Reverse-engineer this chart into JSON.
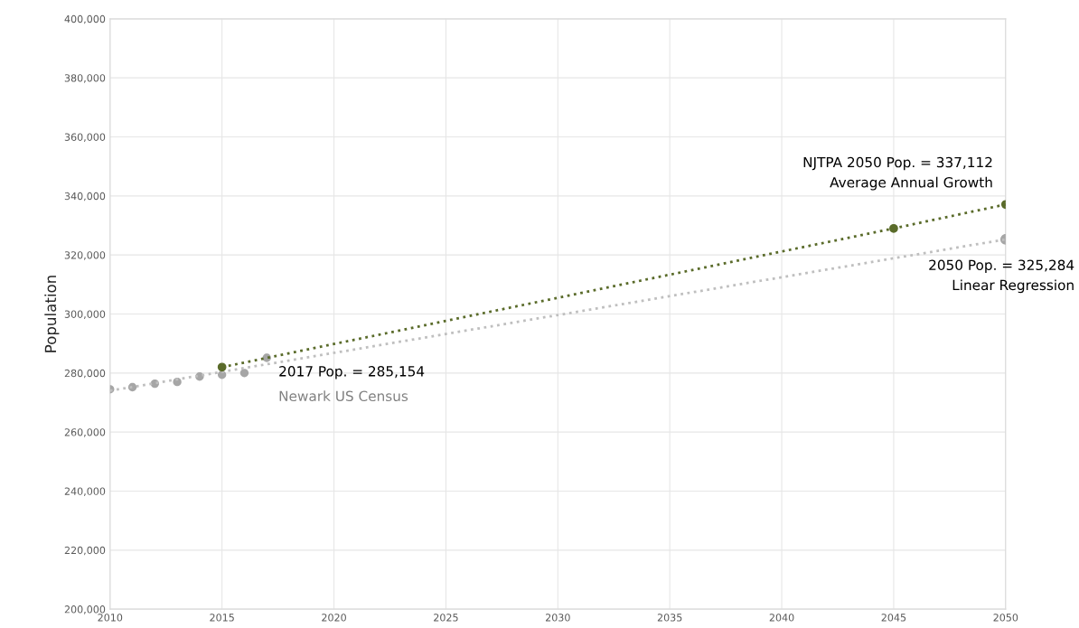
{
  "chart_data": {
    "type": "scatter",
    "ylabel": "Population",
    "x": [
      2010,
      2011,
      2012,
      2013,
      2014,
      2015,
      2016,
      2017
    ],
    "series": [
      {
        "color": "#a6a6a6",
        "values": [
          274500,
          275200,
          276400,
          277000,
          278800,
          279400,
          280000,
          285154
        ]
      },
      {
        "type": "line",
        "line_style": "dotted",
        "marker": "none",
        "color": "#bfbfbf",
        "x": [
          2010,
          2050
        ],
        "values": [
          274000,
          325284
        ]
      },
      {
        "color": "#a6a6a6",
        "x": [
          2050
        ],
        "values": [
          325284
        ]
      },
      {
        "type": "line",
        "line_style": "dotted",
        "marker": "circle",
        "color": "#5a6b2a",
        "x": [
          2015,
          2045,
          2050
        ],
        "values": [
          282000,
          329000,
          337112
        ]
      }
    ],
    "annotations": [
      "2017 Pop. = 285,154",
      "Newark US Census",
      "NJTPA 2050 Pop. = 337,112",
      "Average Annual Growth",
      "2050 Pop. = 325,284",
      "Linear Regression"
    ],
    "xlim": [
      2010,
      2050
    ],
    "xticks": [
      2010,
      2015,
      2020,
      2025,
      2030,
      2035,
      2040,
      2045,
      2050
    ],
    "ylim": [
      200000,
      400000
    ],
    "yticks": [
      {
        "value": 200000,
        "label": "200,000"
      },
      {
        "value": 220000,
        "label": "220,000"
      },
      {
        "value": 240000,
        "label": "240,000"
      },
      {
        "value": 260000,
        "label": "260,000"
      },
      {
        "value": 280000,
        "label": "280,000"
      },
      {
        "value": 300000,
        "label": "300,000"
      },
      {
        "value": 320000,
        "label": "320,000"
      },
      {
        "value": 340000,
        "label": "340,000"
      },
      {
        "value": 360000,
        "label": "360,000"
      },
      {
        "value": 380000,
        "label": "380,000"
      },
      {
        "value": 400000,
        "label": "400,000"
      }
    ],
    "grid": true,
    "legend": false
  }
}
